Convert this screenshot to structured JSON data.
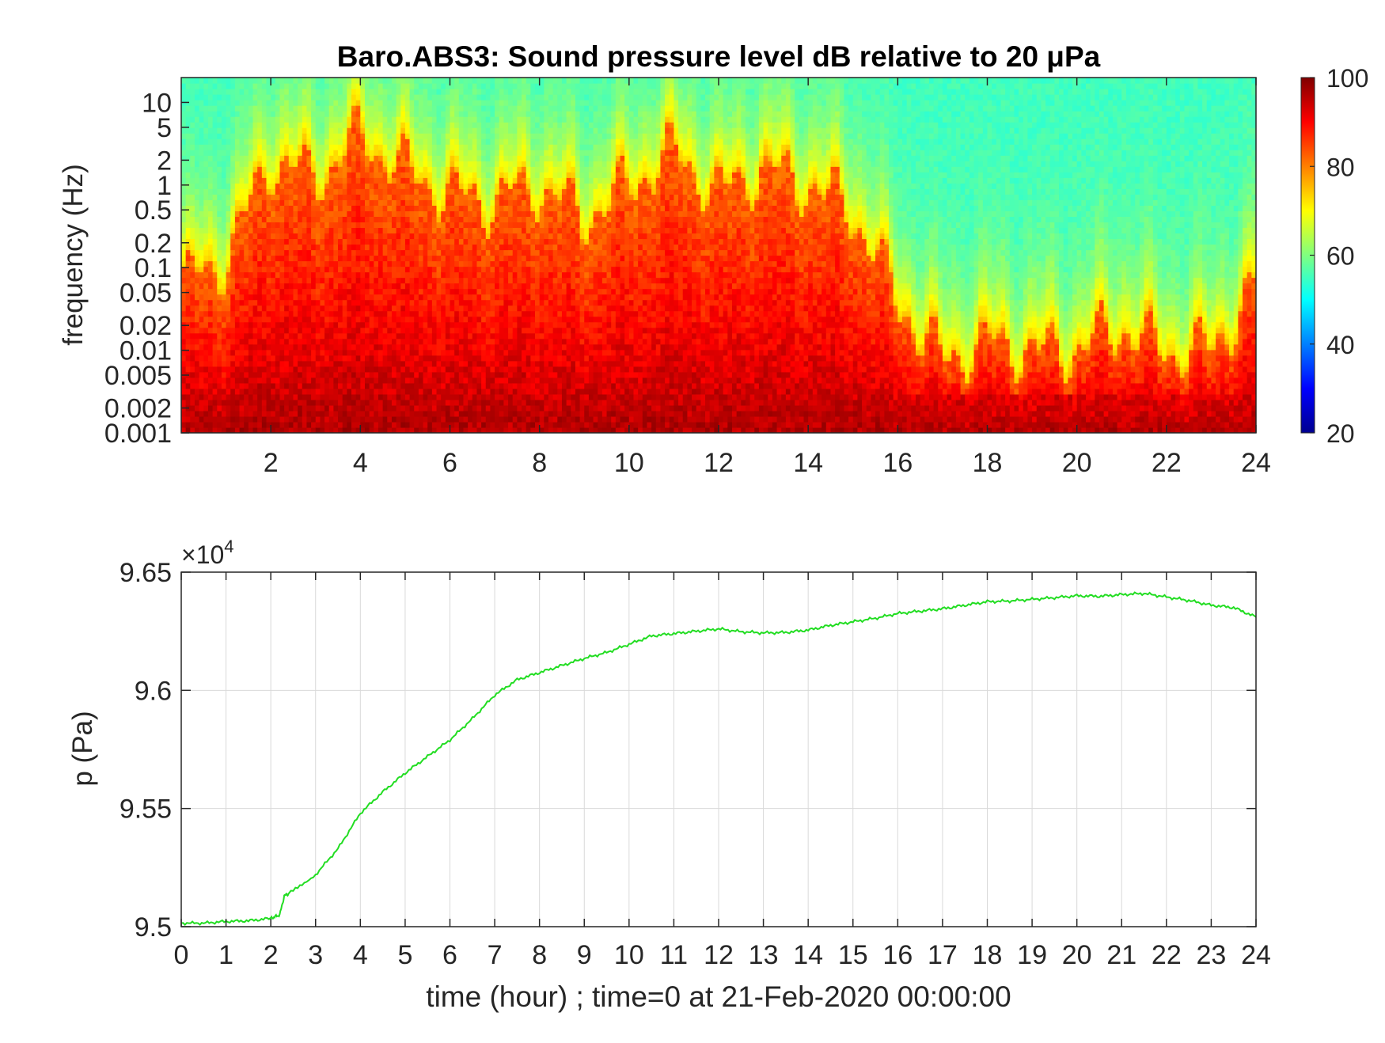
{
  "chart_data": [
    {
      "type": "heatmap",
      "title": "Baro.ABS3: Sound pressure level dB relative to 20 μPa",
      "xlabel": "",
      "ylabel": "frequency (Hz)",
      "x_range": [
        0,
        24
      ],
      "x_ticks": [
        "2",
        "4",
        "6",
        "8",
        "10",
        "12",
        "14",
        "16",
        "18",
        "20",
        "22",
        "24"
      ],
      "y_scale": "log",
      "y_range": [
        0.001,
        20
      ],
      "y_ticks": [
        "10",
        "5",
        "2",
        "1",
        "0.5",
        "0.2",
        "0.1",
        "0.05",
        "0.02",
        "0.01",
        "0.005",
        "0.002",
        "0.001"
      ],
      "colorbar": {
        "colormap": "jet",
        "range": [
          20,
          100
        ],
        "ticks": [
          "100",
          "80",
          "60",
          "40",
          "20"
        ]
      },
      "description_values": {
        "intensity_profile_hours": [
          0,
          1,
          2,
          3,
          4,
          5,
          6,
          7,
          8,
          9,
          10,
          11,
          12,
          13,
          14,
          15,
          16,
          17,
          18,
          19,
          20,
          21,
          22,
          23,
          24
        ],
        "active_band_upper_log10_hz": [
          -1.2,
          -0.9,
          0.3,
          0.1,
          0.6,
          0.2,
          -0.1,
          -0.2,
          0.0,
          -0.4,
          0.0,
          0.4,
          -0.1,
          0.2,
          0.0,
          -0.3,
          -1.4,
          -2.1,
          -1.9,
          -2.0,
          -2.0,
          -1.7,
          -2.0,
          -2.0,
          -1.2
        ],
        "background_db": 55
      }
    },
    {
      "type": "line",
      "title": "",
      "xlabel": "time (hour) ; time=0 at 21-Feb-2020 00:00:00",
      "ylabel": "p (Pa)",
      "exponent_label": "×10",
      "exponent_power": "4",
      "xlim": [
        0,
        24
      ],
      "ylim": [
        95000,
        96500
      ],
      "x_ticks": [
        "0",
        "1",
        "2",
        "3",
        "4",
        "5",
        "6",
        "7",
        "8",
        "9",
        "10",
        "11",
        "12",
        "13",
        "14",
        "15",
        "16",
        "17",
        "18",
        "19",
        "20",
        "21",
        "22",
        "23",
        "24"
      ],
      "y_ticks": [
        "9.5",
        "9.55",
        "9.6",
        "9.65"
      ],
      "grid": true,
      "line_color": "#22dd22",
      "series": [
        {
          "x": [
            0,
            0.5,
            1,
            1.5,
            2,
            2.2,
            2.3,
            2.4,
            3,
            3.5,
            4,
            4.5,
            5,
            5.5,
            6,
            6.5,
            7,
            7.5,
            8,
            8.5,
            9,
            9.5,
            10,
            10.5,
            11,
            11.5,
            12,
            12.5,
            13,
            13.5,
            14,
            14.5,
            15,
            15.5,
            16,
            16.5,
            17,
            17.5,
            18,
            18.5,
            19,
            19.5,
            20,
            20.5,
            21,
            21.5,
            22,
            22.5,
            23,
            23.5,
            24
          ],
          "y": [
            95015,
            95015,
            95022,
            95025,
            95035,
            95050,
            95130,
            95140,
            95220,
            95330,
            95480,
            95570,
            95650,
            95720,
            95790,
            95880,
            95980,
            96045,
            96075,
            96105,
            96135,
            96160,
            96195,
            96230,
            96240,
            96250,
            96260,
            96248,
            96243,
            96245,
            96255,
            96275,
            96290,
            96305,
            96325,
            96335,
            96345,
            96360,
            96375,
            96378,
            96385,
            96392,
            96400,
            96398,
            96405,
            96410,
            96395,
            96380,
            96360,
            96350,
            96310
          ]
        }
      ]
    }
  ]
}
